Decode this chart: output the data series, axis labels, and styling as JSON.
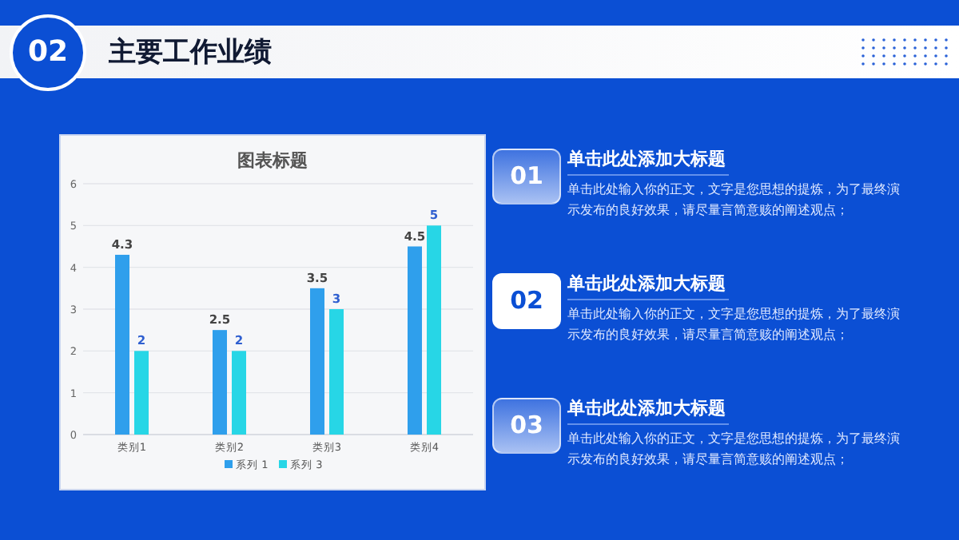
{
  "chart_data": {
    "type": "bar",
    "title": "图表标题",
    "categories": [
      "类别1",
      "类别2",
      "类别3",
      "类别4"
    ],
    "series": [
      {
        "name": "系列 1",
        "color": "#2f9fec",
        "values": [
          4.3,
          2.5,
          3.5,
          4.5
        ]
      },
      {
        "name": "系列 3",
        "color": "#27d6e6",
        "values": [
          2,
          2,
          3,
          5
        ]
      }
    ],
    "ylim": [
      0,
      6
    ],
    "yticks": [
      0,
      1,
      2,
      3,
      4,
      5,
      6
    ],
    "grid": "y",
    "legend": "bottom",
    "data_labels": true,
    "annotations": [
      "02",
      "主要工作业绩",
      "01",
      "单击此处添加大标题",
      "单击此处输入你的正文，文字是您思想的提炼，为了最终演示发布的良好效果，请尽量言简意赅的阐述观点；",
      "02",
      "单击此处添加大标题",
      "单击此处输入你的正文，文字是您思想的提炼，为了最终演示发布的良好效果，请尽量言简意赅的阐述观点；",
      "03",
      "单击此处添加大标题",
      "单击此处输入你的正文，文字是您思想的提炼，为了最终演示发布的良好效果，请尽量言简意赅的阐述观点；"
    ]
  }
}
